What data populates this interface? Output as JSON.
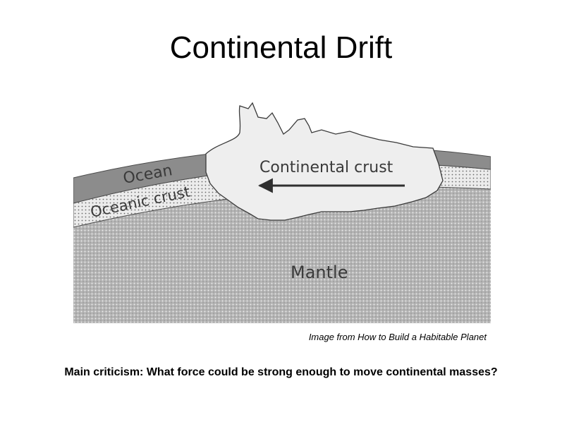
{
  "slide": {
    "title": "Continental Drift",
    "caption": "Image from How to Build a Habitable Planet",
    "criticism": "Main criticism: What force could be strong enough to move continental masses?"
  },
  "diagram": {
    "labels": {
      "ocean": "Ocean",
      "oceanic_crust": "Oceanic crust",
      "continental_crust": "Continental crust",
      "mantle": "Mantle"
    },
    "arrow_direction": "left",
    "colors": {
      "ocean": "#8c8c8c",
      "oceanic_crust": "#e6e6e6",
      "continental_crust": "#eeeeee",
      "mantle": "#b4b4b4"
    }
  }
}
